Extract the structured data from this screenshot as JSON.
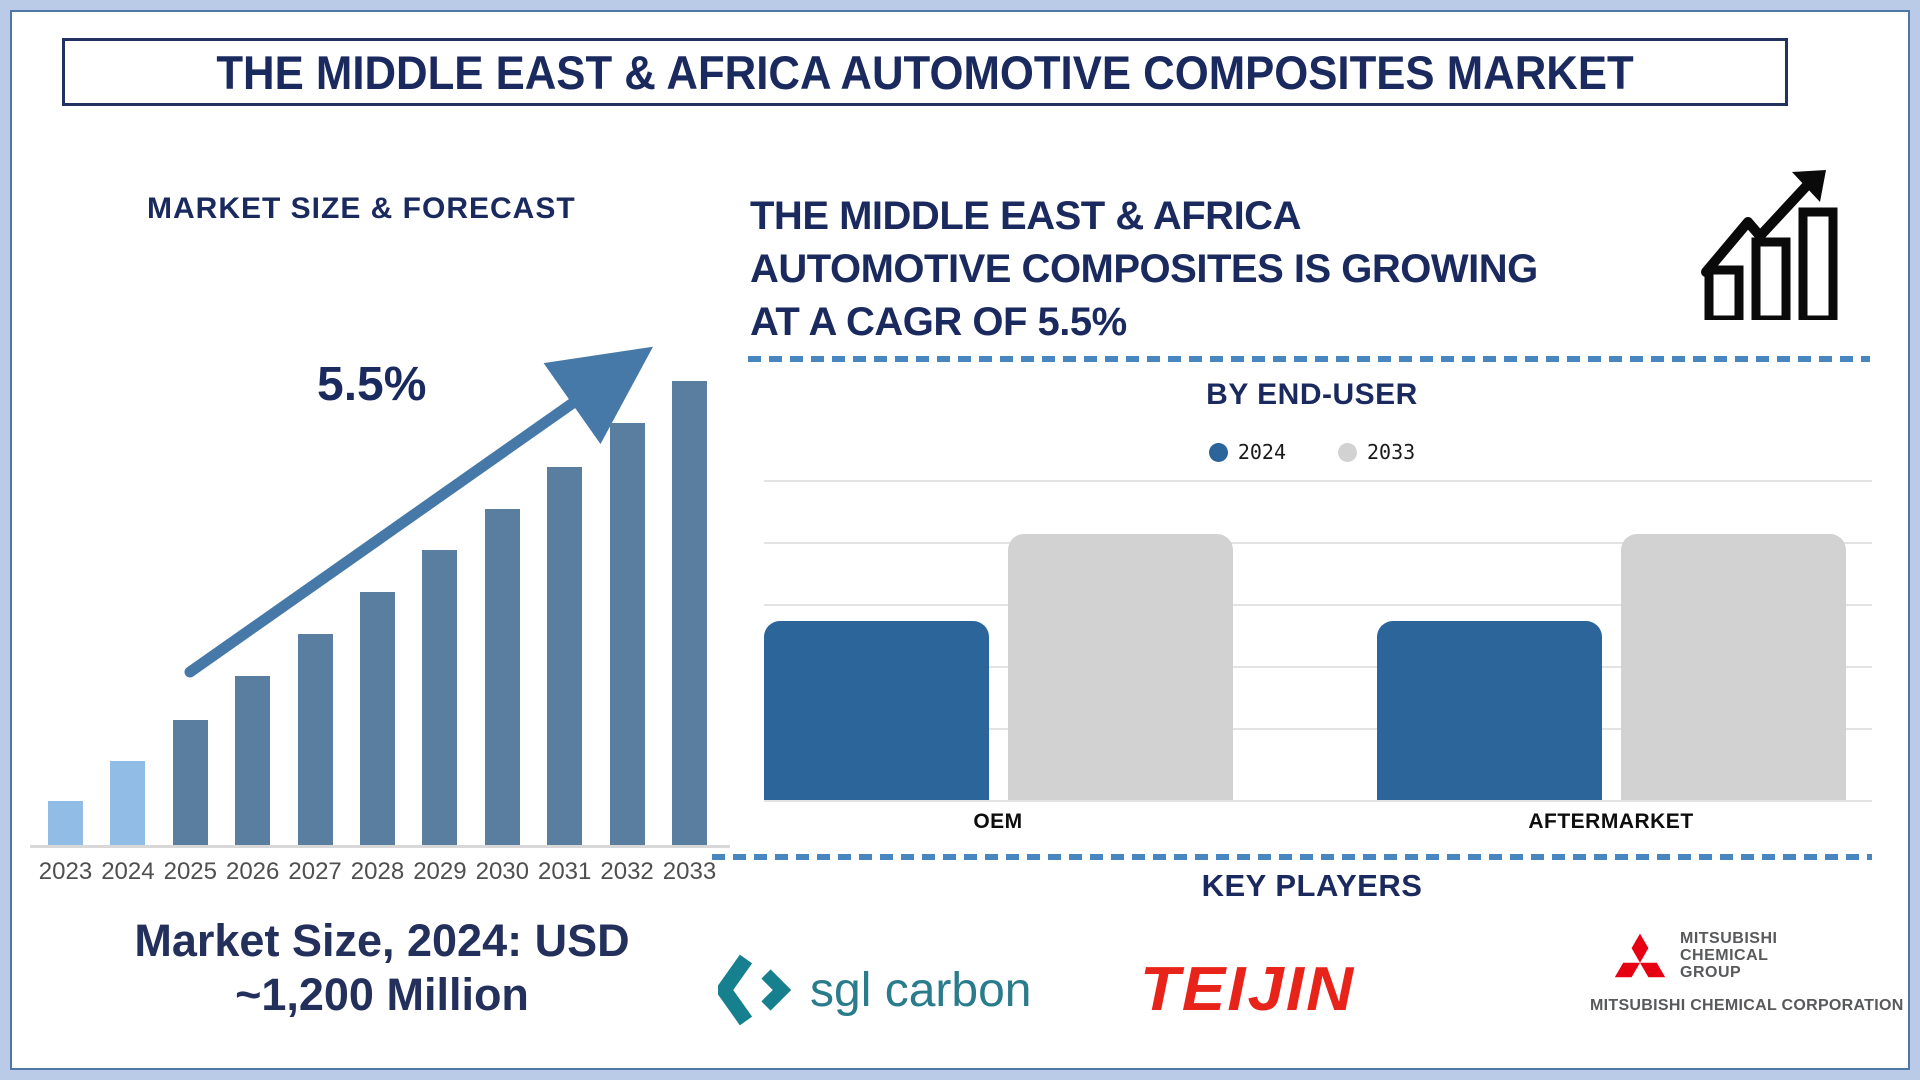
{
  "frame": {
    "title": "THE MIDDLE EAST & AFRICA AUTOMOTIVE COMPOSITES MARKET"
  },
  "chart_data": [
    {
      "type": "bar",
      "name": "market-size-forecast",
      "title": "MARKET SIZE & FORECAST",
      "categories": [
        "2023",
        "2024",
        "2025",
        "2026",
        "2027",
        "2028",
        "2029",
        "2030",
        "2031",
        "2032",
        "2033"
      ],
      "values": [
        9.5,
        18,
        27,
        36.5,
        45.5,
        54.5,
        63.5,
        72.5,
        81.5,
        91,
        100
      ],
      "value_scale": "relative bar height % (no value axis shown)",
      "anchor": "Market Size, 2024: USD ~1,200 Million",
      "cagr_label": "5.5%",
      "historical_count": 2,
      "colors": {
        "historical": "#90BCE5",
        "forecast": "#5A7EA0",
        "trend_arrow": "#4678A8"
      },
      "grid": "off",
      "legend_position": "none"
    },
    {
      "type": "bar",
      "name": "by-end-user",
      "title": "BY END-USER",
      "categories": [
        "OEM",
        "AFTERMARKET"
      ],
      "series": [
        {
          "name": "2024",
          "values": [
            56,
            56
          ],
          "color": "#2B6599"
        },
        {
          "name": "2033",
          "values": [
            83,
            83
          ],
          "color": "#D2D2D2"
        }
      ],
      "value_scale": "relative bar height % (no value axis shown)",
      "ylim": [
        0,
        100
      ],
      "grid": "horizontal",
      "legend_position": "top"
    }
  ],
  "growth_block": {
    "lines": [
      "THE MIDDLE EAST & AFRICA",
      "AUTOMOTIVE COMPOSITES IS GROWING",
      "AT A CAGR OF 5.5%"
    ]
  },
  "market_size_note": {
    "line1": "Market Size, 2024: USD",
    "line2": "~1,200 Million"
  },
  "key_players": {
    "title": "KEY PLAYERS",
    "sgl": {
      "text": "sgl carbon",
      "brand_color": "#16808F"
    },
    "teijin": {
      "text": "TEIJIN",
      "brand_color": "#E8231A"
    },
    "mitsubishi": {
      "group_lines": [
        "MITSUBISHI",
        "CHEMICAL",
        "GROUP"
      ],
      "corporation": "MITSUBISHI CHEMICAL CORPORATION",
      "brand_color": "#E60012"
    }
  },
  "icons": {
    "growth_chart": "growth-bars-arrow-icon",
    "trend_arrow": "trend-up-arrow-icon",
    "sgl_mark": "sgl-chevrons-icon",
    "mitsubishi_mark": "mitsubishi-three-diamonds-icon"
  },
  "colors": {
    "navy_text": "#1B2A5E",
    "frame_border": "#B9CBE7",
    "inner_border": "#4F76A4",
    "dashed_divider": "#4886C0",
    "axis_line": "#D8D8D8",
    "gridline": "#E3E3E3",
    "year_labels": "#4F4F4F"
  }
}
